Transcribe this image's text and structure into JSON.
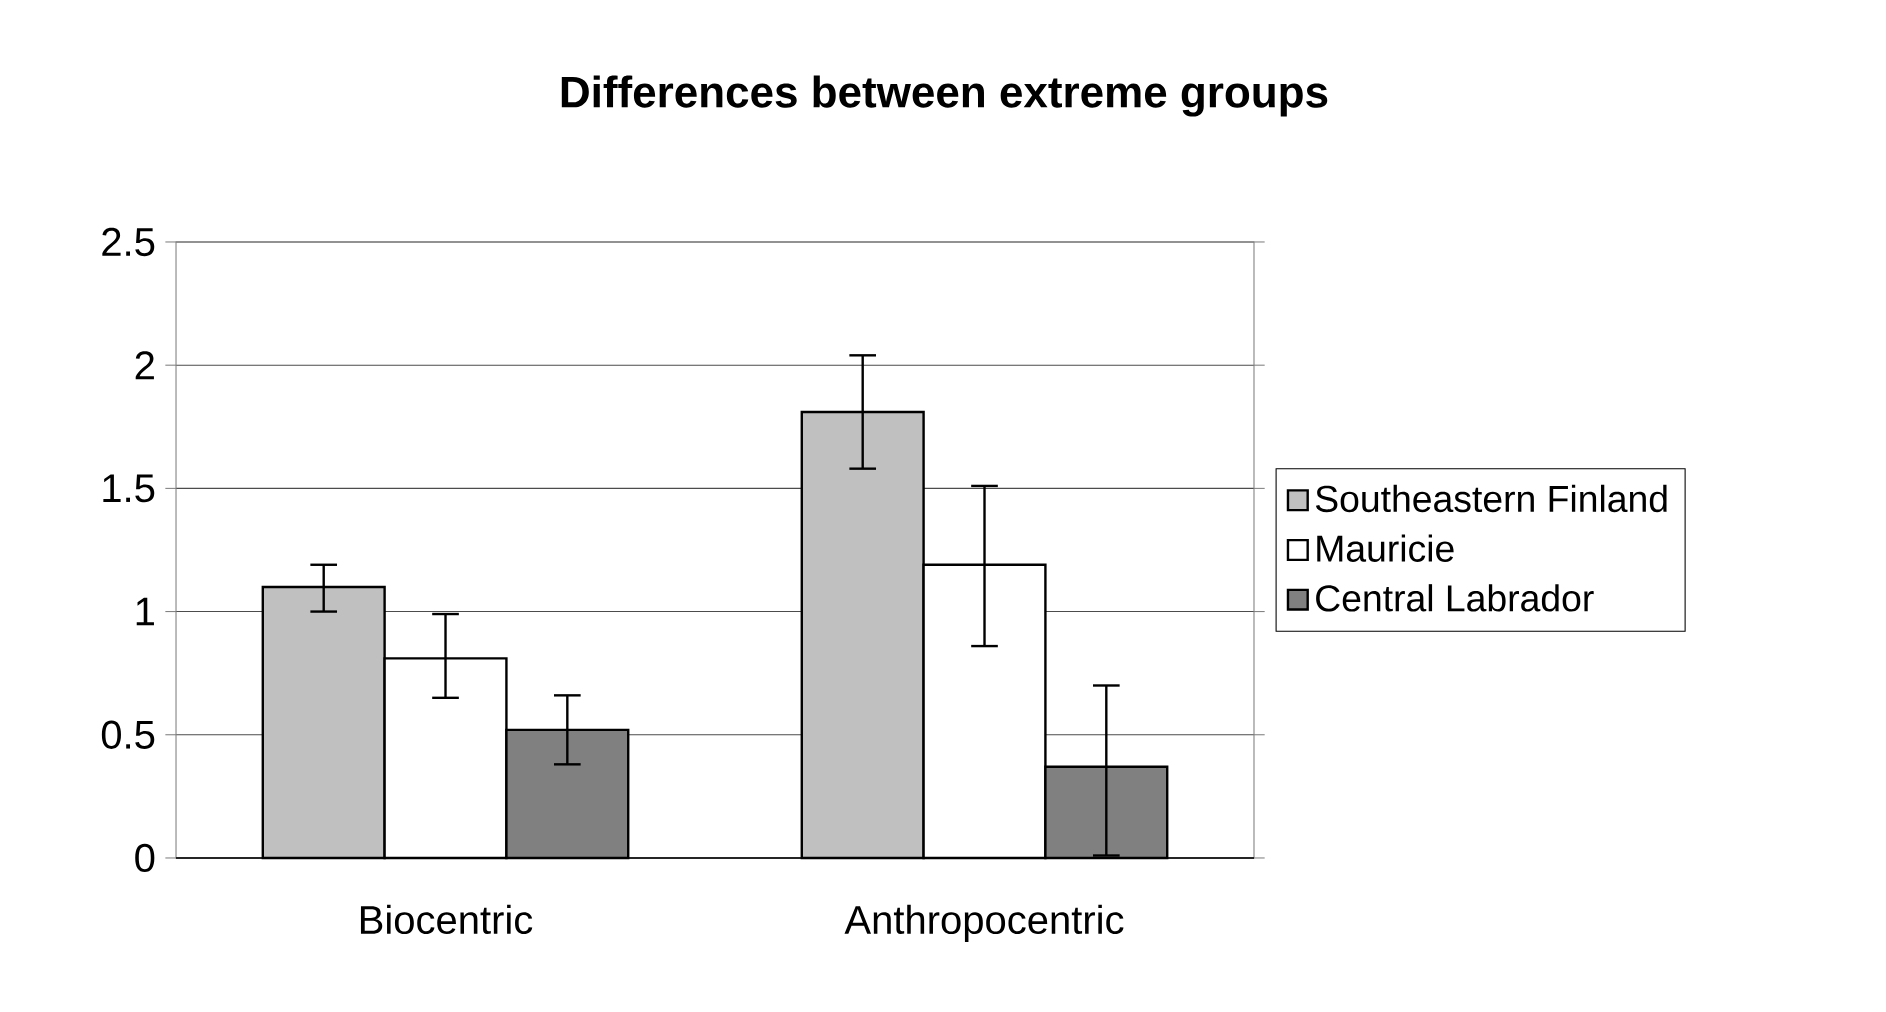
{
  "chart_data": {
    "type": "bar",
    "title": "Differences between extreme groups",
    "categories": [
      "Biocentric",
      "Anthropocentric"
    ],
    "series": [
      {
        "name": "Southeastern Finland",
        "color": "#c0c0c0",
        "values": [
          1.1,
          1.81
        ],
        "errors": [
          [
            1.0,
            1.19
          ],
          [
            1.58,
            2.04
          ]
        ]
      },
      {
        "name": "Mauricie",
        "color": "#ffffff",
        "values": [
          0.81,
          1.19
        ],
        "errors": [
          [
            0.65,
            0.99
          ],
          [
            0.86,
            1.51
          ]
        ]
      },
      {
        "name": "Central Labrador",
        "color": "#808080",
        "values": [
          0.52,
          0.37
        ],
        "errors": [
          [
            0.38,
            0.66
          ],
          [
            0.01,
            0.7
          ]
        ]
      }
    ],
    "ylim": [
      0,
      2.5
    ],
    "yticks": [
      0,
      0.5,
      1,
      1.5,
      2,
      2.5
    ],
    "grid": "y",
    "legend": "right"
  }
}
